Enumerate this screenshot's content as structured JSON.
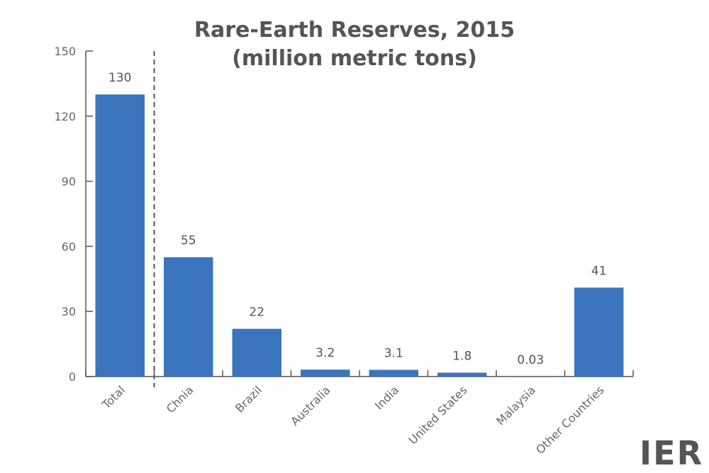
{
  "chart_data": {
    "type": "bar",
    "title_lines": [
      "Rare-Earth Reserves, 2015",
      "(million metric tons)"
    ],
    "categories": [
      "Total",
      "Chnia",
      "Brazil",
      "Australia",
      "India",
      "United States",
      "Malaysia",
      "Other Countries"
    ],
    "values": [
      130,
      55,
      22,
      3.2,
      3.1,
      1.8,
      0.03,
      41
    ],
    "data_labels": [
      "130",
      "55",
      "22",
      "3.2",
      "3.1",
      "1.8",
      "0.03",
      "41"
    ],
    "ylim": [
      0,
      150
    ],
    "yticks": [
      0,
      30,
      60,
      90,
      120,
      150
    ],
    "xlabel": "",
    "ylabel": "",
    "grid": false,
    "bar_color": "#3b75bd",
    "separator_after_category": "Total"
  },
  "logo_text": "IER"
}
